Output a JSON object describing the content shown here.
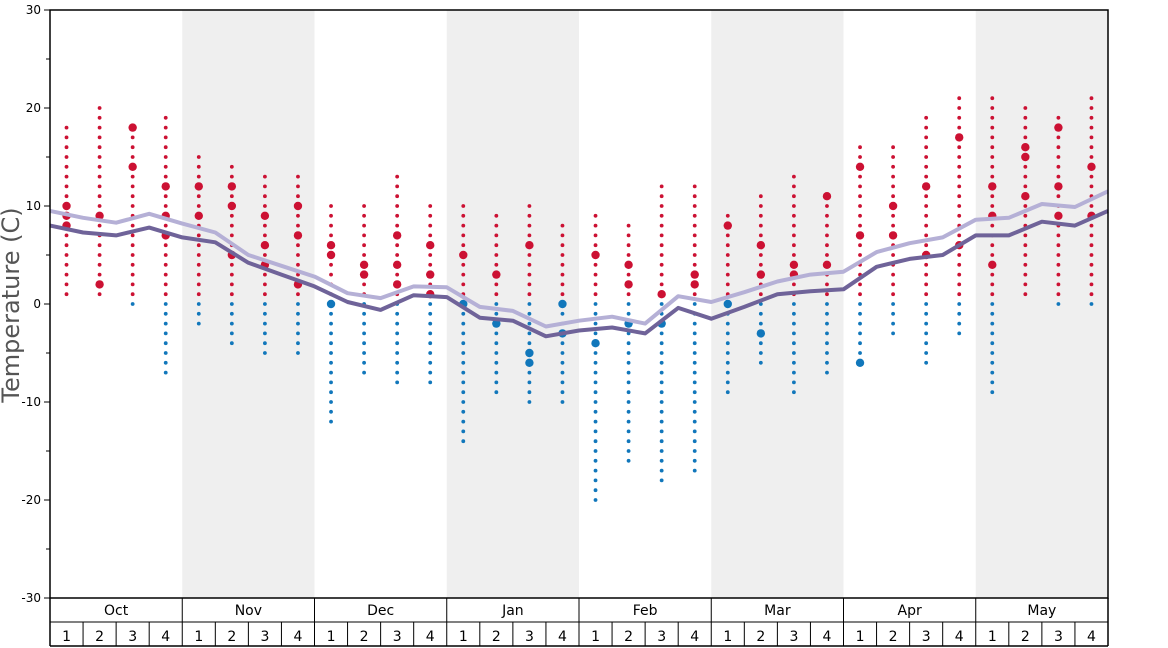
{
  "chart_data": {
    "type": "scatter",
    "ylabel": "Temperature (C)",
    "ylim": [
      -30,
      30
    ],
    "y_ticks": [
      "30",
      "20",
      "10",
      "0",
      "-10",
      "-20",
      "-30"
    ],
    "months": [
      "Oct",
      "Nov",
      "Dec",
      "Jan",
      "Feb",
      "Mar",
      "Apr",
      "May"
    ],
    "weeks": [
      "1",
      "2",
      "3",
      "4"
    ],
    "shaded_months": [
      "Nov",
      "Jan",
      "Mar",
      "May"
    ],
    "colors": {
      "above_zero": "#cc1133",
      "below_zero": "#1177bb",
      "line_light": "#b5b0d6",
      "line_dark": "#6f6399",
      "shade": "#efefef"
    },
    "line_light_values": [
      9.5,
      8.8,
      8.3,
      9.2,
      8.2,
      7.3,
      5.0,
      3.9,
      2.8,
      1.1,
      0.6,
      1.8,
      1.7,
      -0.3,
      -0.7,
      -2.3,
      -1.7,
      -1.3,
      -2.0,
      0.8,
      0.2,
      1.2,
      2.3,
      3.0,
      3.3,
      5.3,
      6.2,
      6.8,
      8.6,
      8.8,
      10.2,
      9.9,
      11.5
    ],
    "line_dark_values": [
      8.0,
      7.3,
      7.0,
      7.8,
      6.8,
      6.3,
      4.2,
      3.0,
      1.8,
      0.2,
      -0.6,
      0.9,
      0.7,
      -1.4,
      -1.7,
      -3.3,
      -2.7,
      -2.4,
      -3.0,
      -0.4,
      -1.5,
      -0.3,
      1.0,
      1.3,
      1.5,
      3.8,
      4.6,
      5.0,
      7.0,
      7.0,
      8.4,
      8.0,
      9.5
    ],
    "obs": [
      {
        "max": 18,
        "min": 1,
        "big": [
          10,
          8,
          9
        ]
      },
      {
        "max": 20,
        "min": 1,
        "big": [
          9,
          2
        ]
      },
      {
        "max": 18,
        "min": 0,
        "big": [
          18,
          14
        ]
      },
      {
        "max": 19,
        "min": -7,
        "big": [
          12,
          9,
          7
        ]
      },
      {
        "max": 15,
        "min": -2,
        "big": [
          12,
          9
        ]
      },
      {
        "max": 14,
        "min": -4,
        "big": [
          12,
          10,
          5
        ]
      },
      {
        "max": 13,
        "min": -5,
        "big": [
          9,
          6,
          4
        ]
      },
      {
        "max": 13,
        "min": -5,
        "big": [
          10,
          7,
          2
        ]
      },
      {
        "max": 10,
        "min": -12,
        "big": [
          6,
          5,
          0
        ]
      },
      {
        "max": 10,
        "min": -7,
        "big": [
          4,
          3
        ]
      },
      {
        "max": 13,
        "min": -8,
        "big": [
          7,
          4,
          2
        ]
      },
      {
        "max": 10,
        "min": -8,
        "big": [
          6,
          3,
          1
        ]
      },
      {
        "max": 10,
        "min": -14,
        "big": [
          5,
          0
        ]
      },
      {
        "max": 9,
        "min": -9,
        "big": [
          3,
          -2
        ]
      },
      {
        "max": 10,
        "min": -10,
        "big": [
          6,
          -5,
          -6
        ]
      },
      {
        "max": 8,
        "min": -10,
        "big": [
          0,
          -3
        ]
      },
      {
        "max": 9,
        "min": -20,
        "big": [
          5,
          -4
        ]
      },
      {
        "max": 8,
        "min": -16,
        "big": [
          4,
          2,
          -2
        ]
      },
      {
        "max": 12,
        "min": -18,
        "big": [
          1,
          -2
        ]
      },
      {
        "max": 12,
        "min": -17,
        "big": [
          3,
          2
        ]
      },
      {
        "max": 9,
        "min": -9,
        "big": [
          8,
          0
        ]
      },
      {
        "max": 11,
        "min": -6,
        "big": [
          6,
          3,
          -3
        ]
      },
      {
        "max": 13,
        "min": -9,
        "big": [
          4,
          3
        ]
      },
      {
        "max": 11,
        "min": -7,
        "big": [
          11,
          4
        ]
      },
      {
        "max": 16,
        "min": -6,
        "big": [
          14,
          7,
          -6
        ]
      },
      {
        "max": 16,
        "min": -3,
        "big": [
          10,
          7
        ]
      },
      {
        "max": 19,
        "min": -6,
        "big": [
          12,
          5
        ]
      },
      {
        "max": 21,
        "min": -3,
        "big": [
          17,
          6
        ]
      },
      {
        "max": 21,
        "min": -9,
        "big": [
          12,
          9,
          4
        ]
      },
      {
        "max": 20,
        "min": 1,
        "big": [
          16,
          15,
          11
        ]
      },
      {
        "max": 19,
        "min": 0,
        "big": [
          18,
          12,
          9
        ]
      },
      {
        "max": 21,
        "min": 0,
        "big": [
          14,
          9
        ]
      }
    ]
  }
}
